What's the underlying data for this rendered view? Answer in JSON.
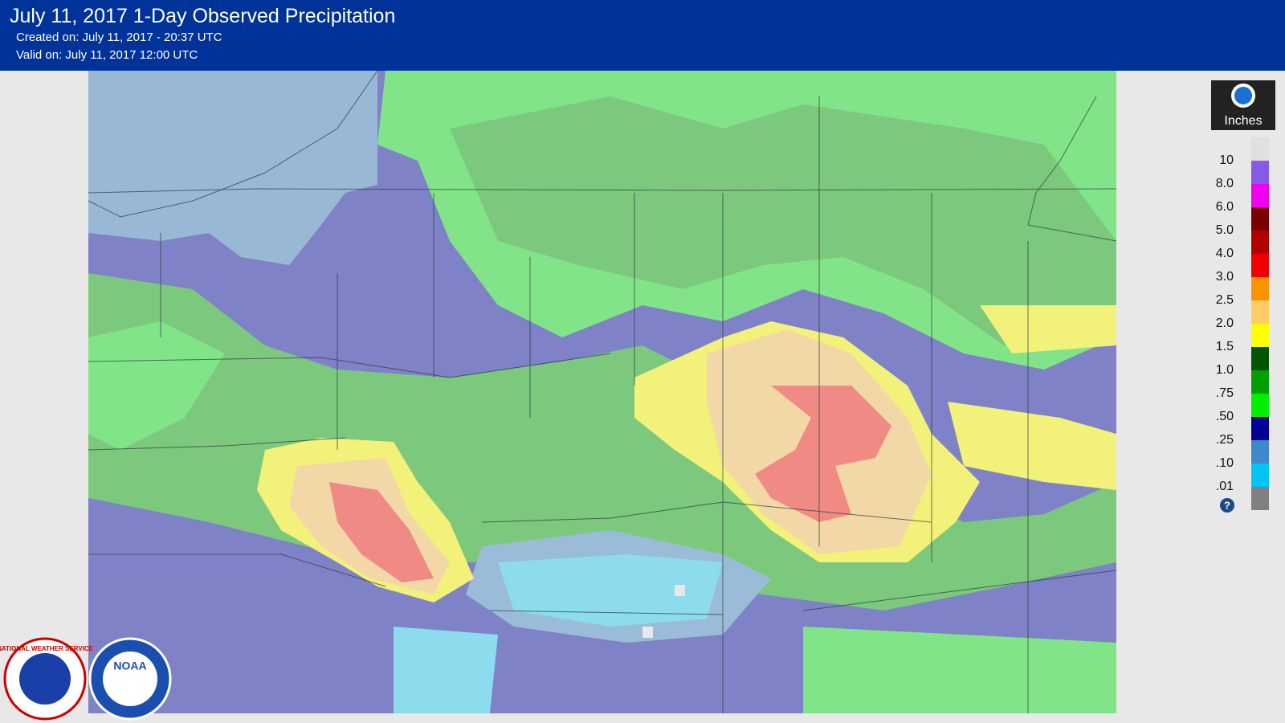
{
  "header": {
    "title": "July 11, 2017 1-Day Observed Precipitation",
    "created": "Created on: July 11, 2017 - 20:37 UTC",
    "valid": "Valid on: July 11, 2017 12:00 UTC"
  },
  "legend": {
    "title": "Inches",
    "entries": [
      {
        "label": "10",
        "color": "#8a5ae6"
      },
      {
        "label": "8.0",
        "color": "#ee00ee"
      },
      {
        "label": "6.0",
        "color": "#7a0000"
      },
      {
        "label": "5.0",
        "color": "#b00000"
      },
      {
        "label": "4.0",
        "color": "#f00000"
      },
      {
        "label": "3.0",
        "color": "#f89400"
      },
      {
        "label": "2.5",
        "color": "#ffcc66"
      },
      {
        "label": "2.0",
        "color": "#ffff00"
      },
      {
        "label": "1.5",
        "color": "#005400"
      },
      {
        "label": "1.0",
        "color": "#00a000"
      },
      {
        "label": ".75",
        "color": "#00ee00"
      },
      {
        "label": ".50",
        "color": "#000094"
      },
      {
        "label": ".25",
        "color": "#4088cc"
      },
      {
        "label": ".10",
        "color": "#00c4f4"
      },
      {
        "label": ".01",
        "color": "#808080"
      }
    ]
  },
  "logos": {
    "nws": "NATIONAL WEATHER SERVICE",
    "noaa": "NOAA"
  }
}
